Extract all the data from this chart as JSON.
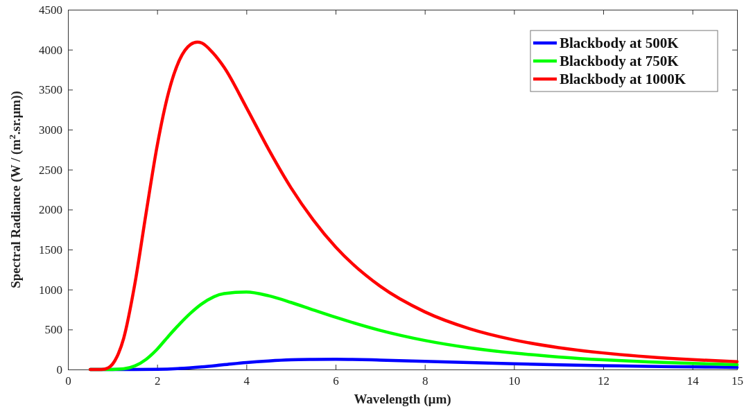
{
  "chart_data": {
    "type": "line",
    "xlabel": "Wavelength (µm)",
    "ylabel": "Spectral Radiance (W / (m$^{2}$.sr.µm))",
    "xlim": [
      0,
      15
    ],
    "xticks": [
      0,
      2,
      4,
      6,
      8,
      10,
      12,
      14,
      15
    ],
    "ylim": [
      0,
      4500
    ],
    "yticks": [
      0,
      500,
      1000,
      1500,
      2000,
      2500,
      3000,
      3500,
      4000,
      4500
    ],
    "grid": false,
    "legend": "top right",
    "line_style": "solid",
    "series": [
      {
        "name": "Blackbody at 500K",
        "color": "#0000ff",
        "x": [
          0.5,
          1,
          1.5,
          2,
          2.5,
          3,
          3.5,
          4,
          4.5,
          5,
          5.5,
          6,
          7,
          8,
          9,
          10,
          11,
          12,
          13,
          14,
          15
        ],
        "values": [
          0,
          0,
          0,
          2,
          12,
          33,
          60,
          87,
          107,
          121,
          126,
          128,
          118,
          102,
          86,
          71,
          58,
          48,
          39,
          33,
          27
        ]
      },
      {
        "name": "Blackbody at 750K",
        "color": "#00ff00",
        "x": [
          0.5,
          0.75,
          1,
          1.25,
          1.5,
          1.75,
          2,
          2.25,
          2.5,
          2.75,
          3,
          3.5,
          4,
          4.5,
          5,
          5.5,
          6,
          7,
          8,
          9,
          10,
          11,
          12,
          13,
          14,
          15
        ],
        "values": [
          0,
          0,
          1,
          8,
          44,
          126,
          254,
          415,
          567,
          705,
          820,
          949,
          969,
          922,
          839,
          745,
          653,
          489,
          363,
          271,
          205,
          157,
          121,
          95,
          75,
          60
        ]
      },
      {
        "name": "Blackbody at 1000K",
        "color": "#ff0000",
        "x": [
          0.5,
          0.75,
          0.9,
          1,
          1.1,
          1.25,
          1.5,
          1.75,
          2,
          2.25,
          2.5,
          2.75,
          2.9,
          3,
          3.25,
          3.5,
          4,
          4.5,
          5,
          5.5,
          6,
          7,
          8,
          9,
          10,
          11,
          12,
          13,
          14,
          15
        ],
        "values": [
          0,
          0,
          20,
          67,
          160,
          392,
          1071,
          1950,
          2798,
          3453,
          3871,
          4066,
          4095,
          4084,
          3960,
          3780,
          3277,
          2752,
          2273,
          1870,
          1532,
          1041,
          721,
          511,
          370,
          274,
          207,
          158,
          123,
          97
        ]
      }
    ]
  }
}
